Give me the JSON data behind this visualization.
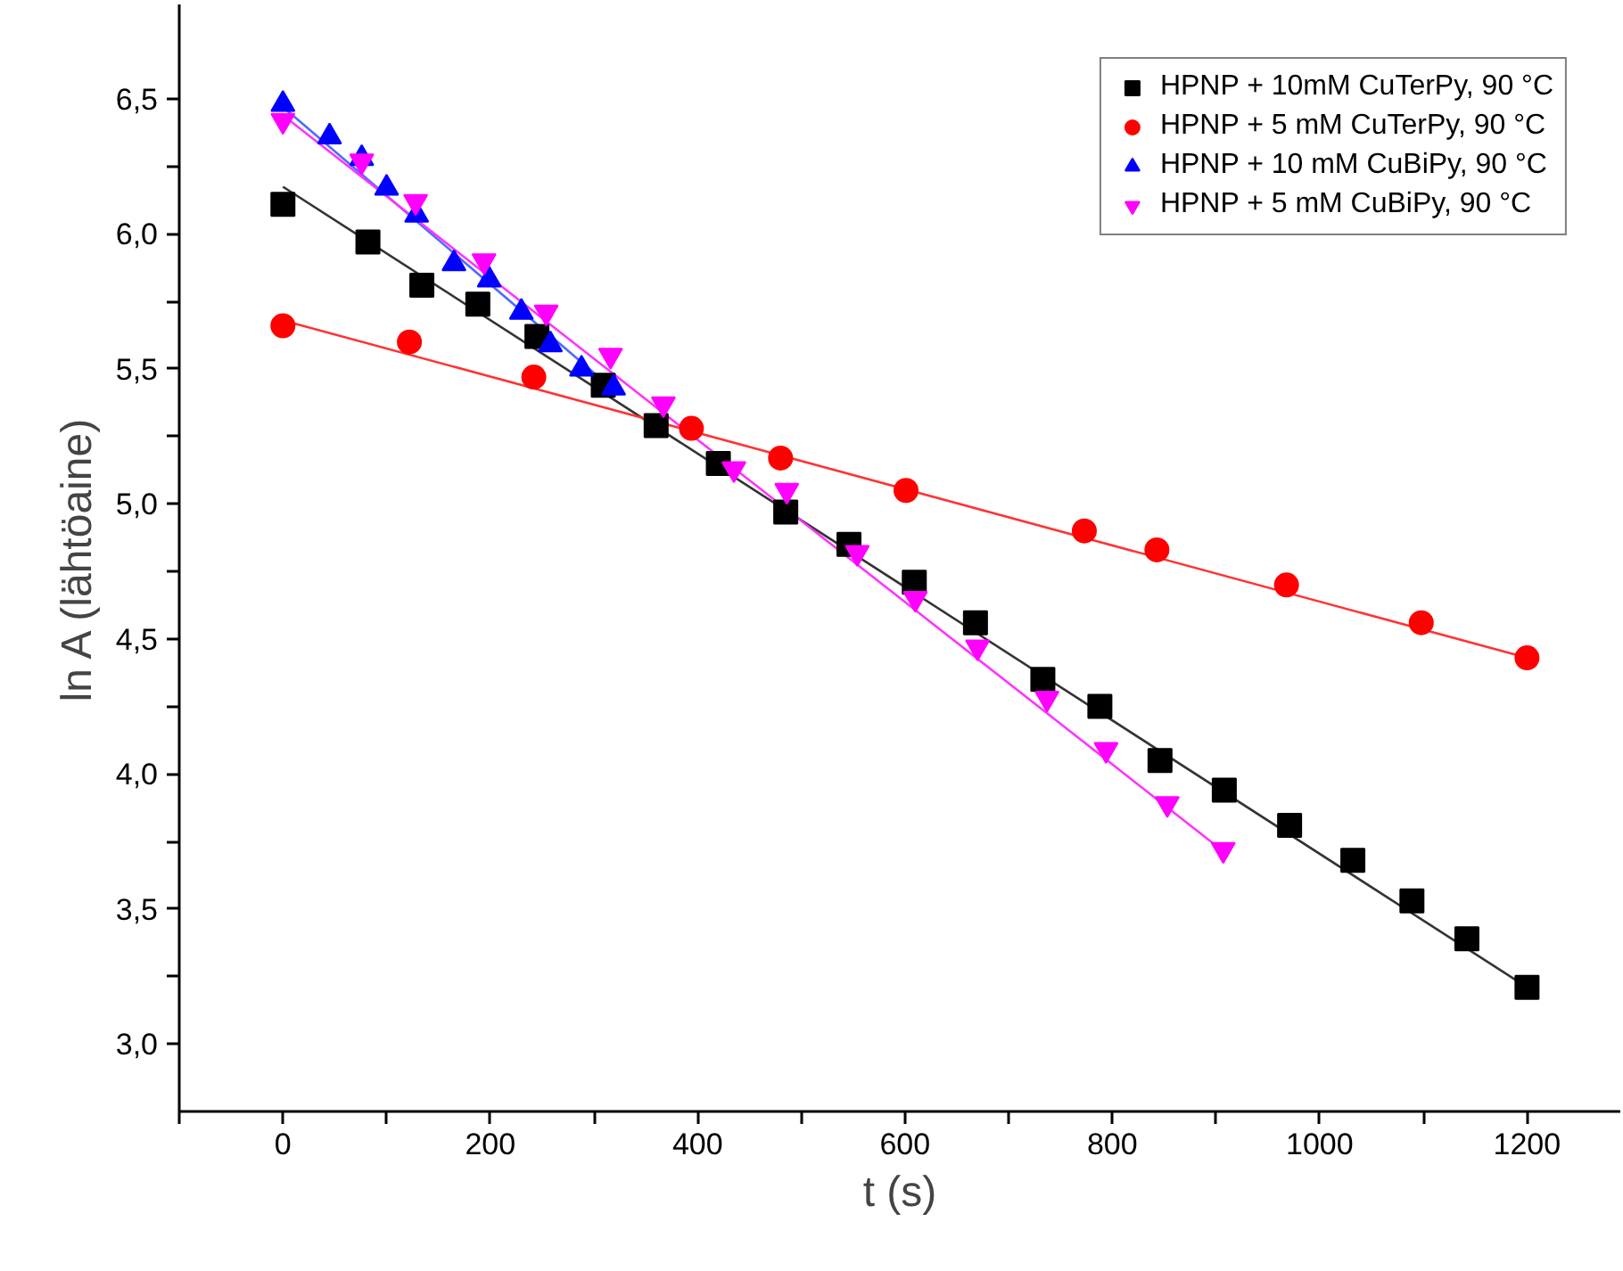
{
  "chart_data": {
    "type": "scatter",
    "xlabel": "t (s)",
    "ylabel": "ln A (lähtöaine)",
    "xlim": [
      -100,
      1290
    ],
    "ylim": [
      2.75,
      6.85
    ],
    "xticks": [
      {
        "value": -100,
        "label": null
      },
      0,
      {
        "value": 100,
        "label": null
      },
      200,
      {
        "value": 300,
        "label": null
      },
      400,
      {
        "value": 500,
        "label": null
      },
      600,
      {
        "value": 700,
        "label": null
      },
      800,
      {
        "value": 900,
        "label": null
      },
      1000,
      {
        "value": 1100,
        "label": null
      },
      1200
    ],
    "yticks": [
      {
        "value": 3.0,
        "label": "3,0"
      },
      {
        "value": 3.25,
        "label": null
      },
      {
        "value": 3.5,
        "label": "3,5"
      },
      {
        "value": 3.75,
        "label": null
      },
      {
        "value": 4.0,
        "label": "4,0"
      },
      {
        "value": 4.25,
        "label": null
      },
      {
        "value": 4.5,
        "label": "4,5"
      },
      {
        "value": 4.75,
        "label": null
      },
      {
        "value": 5.0,
        "label": "5,0"
      },
      {
        "value": 5.25,
        "label": null
      },
      {
        "value": 5.5,
        "label": "5,5"
      },
      {
        "value": 5.75,
        "label": null
      },
      {
        "value": 6.0,
        "label": "6,0"
      },
      {
        "value": 6.25,
        "label": null
      },
      {
        "value": 6.5,
        "label": "6,5"
      }
    ],
    "grid": false,
    "legend": "top right",
    "series": [
      {
        "name": "HPNP + 10mM CuTerPy, 90 °C",
        "marker": "square",
        "color": "#000000",
        "x": [
          0,
          82,
          134,
          188,
          245,
          309,
          360,
          420,
          485,
          546,
          609,
          668,
          733,
          788,
          846,
          908,
          971,
          1032,
          1089,
          1142,
          1200
        ],
        "values": [
          6.11,
          5.97,
          5.81,
          5.74,
          5.62,
          5.44,
          5.29,
          5.15,
          4.97,
          4.85,
          4.71,
          4.56,
          4.35,
          4.25,
          4.05,
          3.94,
          3.81,
          3.68,
          3.53,
          3.39,
          3.21
        ]
      },
      {
        "name": "HPNP + 5 mM CuTerPy, 90 °C",
        "marker": "circle",
        "color": "#ff0000",
        "x": [
          0,
          122,
          242,
          394,
          480,
          601,
          773,
          843,
          968,
          1098,
          1200
        ],
        "values": [
          5.66,
          5.6,
          5.47,
          5.28,
          5.17,
          5.05,
          4.9,
          4.83,
          4.7,
          4.56,
          4.43
        ]
      },
      {
        "name": "HPNP + 10 mM CuBiPy, 90 °C",
        "marker": "triangle",
        "color": "#0000ff",
        "x": [
          0,
          45,
          76,
          100,
          129,
          165,
          199,
          230,
          258,
          288,
          319
        ],
        "values": [
          6.48,
          6.36,
          6.28,
          6.17,
          6.07,
          5.89,
          5.83,
          5.71,
          5.59,
          5.5,
          5.43
        ]
      },
      {
        "name": "HPNP + 5 mM CuBiPy, 90 °C",
        "marker": "triangle",
        "color": "#ff00ff",
        "x": [
          0,
          76,
          128,
          194,
          254,
          316,
          367,
          435,
          486,
          554,
          610,
          670,
          737,
          794,
          853,
          907
        ],
        "values": [
          6.42,
          6.27,
          6.12,
          5.9,
          5.71,
          5.55,
          5.37,
          5.13,
          5.05,
          4.82,
          4.65,
          4.47,
          4.28,
          4.09,
          3.89,
          3.72
        ]
      },
      {
        "type": "line",
        "color": "#333333",
        "x": [
          0,
          1200
        ],
        "values": [
          6.175,
          3.21
        ]
      },
      {
        "type": "line",
        "color": "#ff3333",
        "x": [
          0,
          1200
        ],
        "values": [
          5.68,
          4.43
        ]
      },
      {
        "type": "line",
        "color": "#4d6bff",
        "x": [
          0,
          320
        ],
        "values": [
          6.47,
          5.42
        ]
      },
      {
        "type": "line",
        "color": "#ff33ff",
        "x": [
          0,
          905
        ],
        "values": [
          6.44,
          3.72
        ]
      }
    ]
  }
}
